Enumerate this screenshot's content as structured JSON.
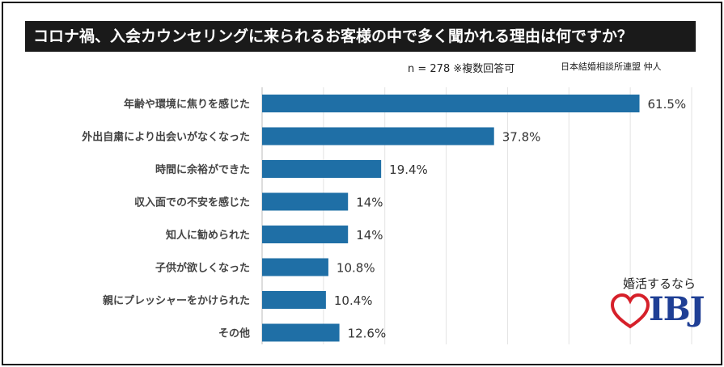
{
  "title": "コロナ禍、入会カウンセリングに来られるお客様の中で多く聞かれる理由は何ですか？",
  "note_n": "n = 278 ※複数回答可",
  "note_source": "日本結婚相談所連盟 仲人",
  "logo": {
    "tagline": "婚活するなら",
    "text": "IBJ",
    "mark": "heart-icon"
  },
  "colors": {
    "bar": "#1f6fa6",
    "grid": "#e3e3e3",
    "title_bg": "#1a1a1a",
    "logo_text": "#1f3f95",
    "logo_heart": "#d6202a"
  },
  "chart_data": {
    "type": "bar",
    "orientation": "horizontal",
    "categories": [
      "年齢や環境に焦りを感じた",
      "外出自粛により出会いがなくなった",
      "時間に余裕ができた",
      "収入面での不安を感じた",
      "知人に勧められた",
      "子供が欲しくなった",
      "親にプレッシャーをかけられた",
      "その他"
    ],
    "values": [
      61.5,
      37.8,
      19.4,
      14,
      14,
      10.8,
      10.4,
      12.6
    ],
    "value_labels": [
      "61.5%",
      "37.8%",
      "19.4%",
      "14%",
      "14%",
      "10.8%",
      "10.4%",
      "12.6%"
    ],
    "unit": "%",
    "xlim": [
      0,
      70
    ],
    "grid": true
  }
}
